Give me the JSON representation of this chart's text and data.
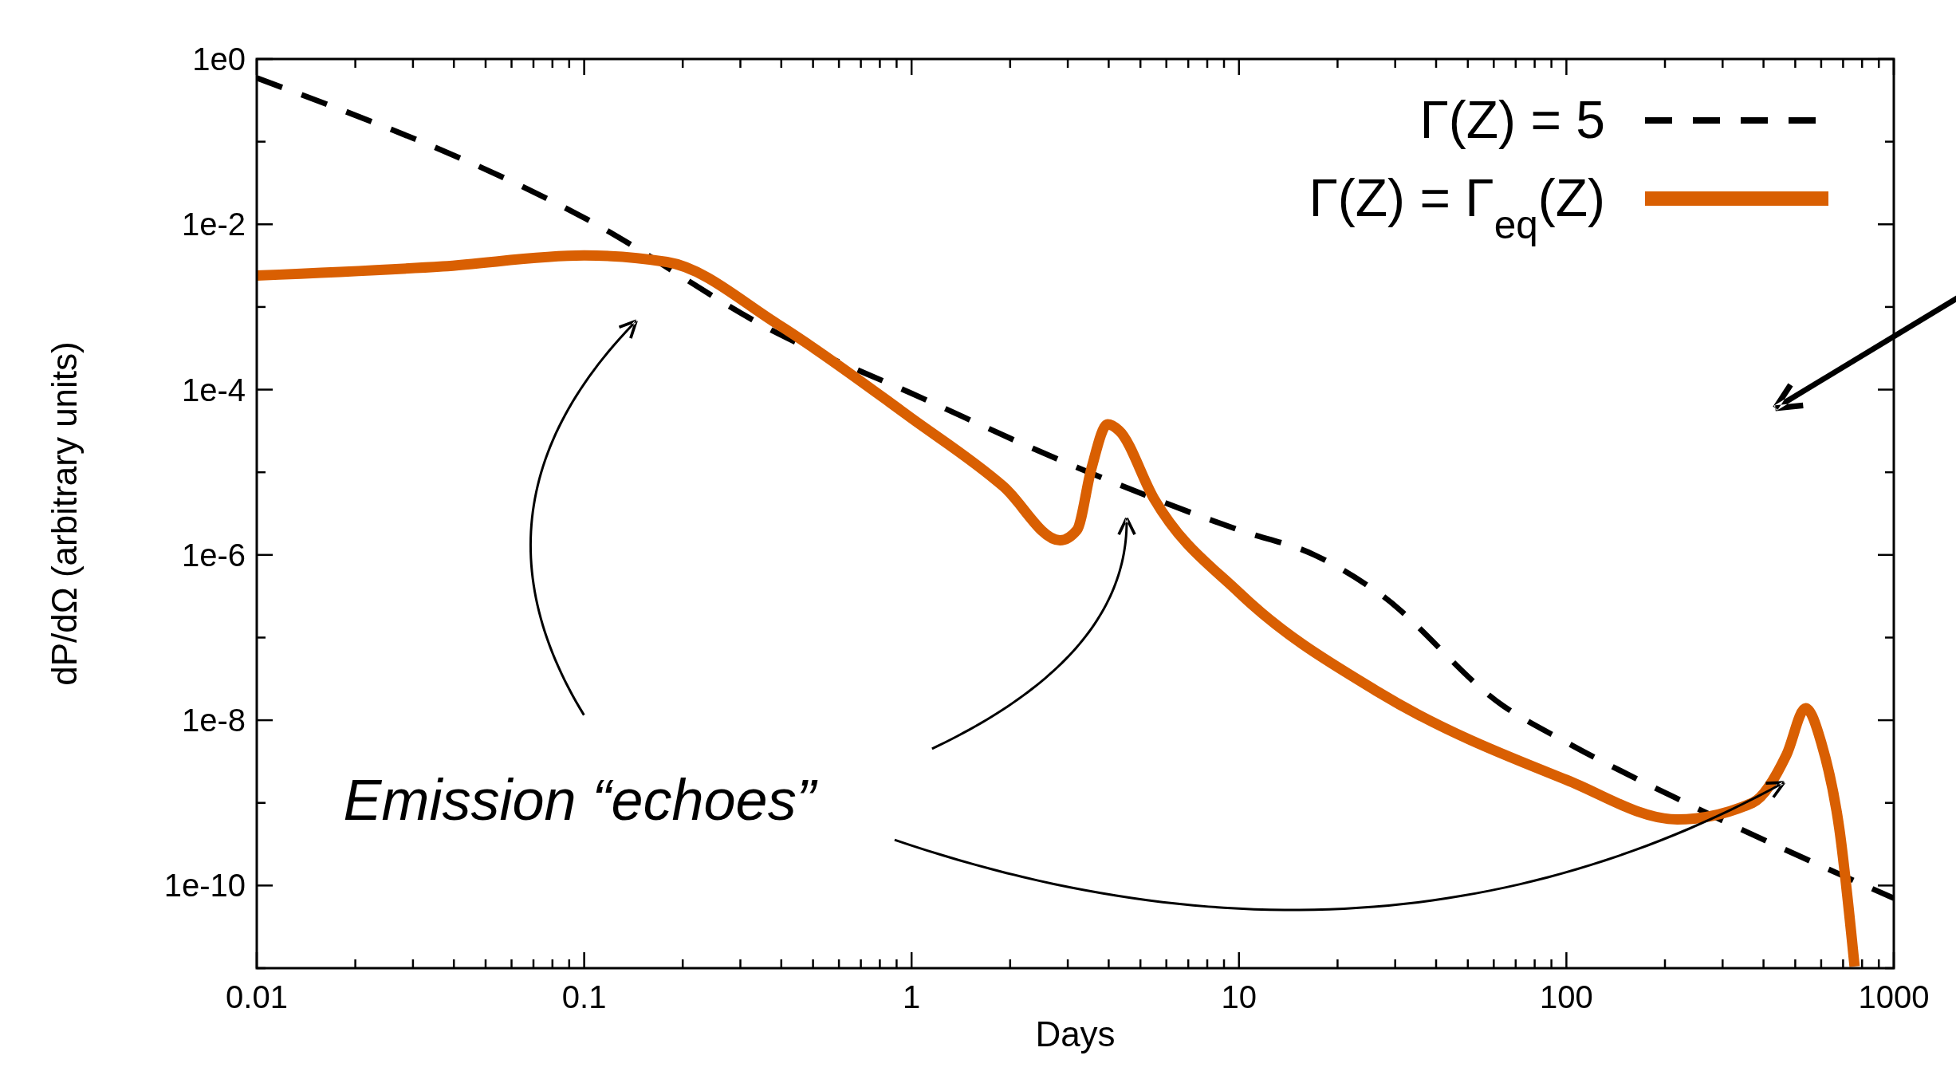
{
  "chart_data": {
    "type": "line",
    "xlabel": "Days",
    "ylabel": "dP/dΩ (arbitrary units)",
    "log": "xy",
    "xlim": [
      0.01,
      1000
    ],
    "ylim": [
      1e-11,
      1
    ],
    "xticks": [
      {
        "value": 0.01,
        "label": "0.01"
      },
      {
        "value": 0.02,
        "label": null
      },
      {
        "value": 0.03,
        "label": null
      },
      {
        "value": 0.04,
        "label": null
      },
      {
        "value": 0.05,
        "label": null
      },
      {
        "value": 0.06,
        "label": null
      },
      {
        "value": 0.07,
        "label": null
      },
      {
        "value": 0.08,
        "label": null
      },
      {
        "value": 0.09,
        "label": null
      },
      {
        "value": 0.1,
        "label": "0.1"
      },
      {
        "value": 0.2,
        "label": null
      },
      {
        "value": 0.3,
        "label": null
      },
      {
        "value": 0.4,
        "label": null
      },
      {
        "value": 0.5,
        "label": null
      },
      {
        "value": 0.6,
        "label": null
      },
      {
        "value": 0.7,
        "label": null
      },
      {
        "value": 0.8,
        "label": null
      },
      {
        "value": 0.9,
        "label": null
      },
      1,
      {
        "value": 2,
        "label": null
      },
      {
        "value": 3,
        "label": null
      },
      {
        "value": 4,
        "label": null
      },
      {
        "value": 5,
        "label": null
      },
      {
        "value": 6,
        "label": null
      },
      {
        "value": 7,
        "label": null
      },
      {
        "value": 8,
        "label": null
      },
      {
        "value": 9,
        "label": null
      },
      10,
      {
        "value": 20,
        "label": null
      },
      {
        "value": 30,
        "label": null
      },
      {
        "value": 40,
        "label": null
      },
      {
        "value": 50,
        "label": null
      },
      {
        "value": 60,
        "label": null
      },
      {
        "value": 70,
        "label": null
      },
      {
        "value": 80,
        "label": null
      },
      {
        "value": 90,
        "label": null
      },
      100,
      {
        "value": 200,
        "label": null
      },
      {
        "value": 300,
        "label": null
      },
      {
        "value": 400,
        "label": null
      },
      {
        "value": 500,
        "label": null
      },
      {
        "value": 600,
        "label": null
      },
      {
        "value": 700,
        "label": null
      },
      {
        "value": 800,
        "label": null
      },
      {
        "value": 900,
        "label": null
      },
      1000
    ],
    "yticks": [
      {
        "value": 1e-11,
        "label": null
      },
      {
        "value": 1e-10,
        "label": "1e-10"
      },
      {
        "value": 1e-09,
        "label": null
      },
      {
        "value": 1e-08,
        "label": "1e-8"
      },
      {
        "value": 1e-07,
        "label": null
      },
      {
        "value": 1e-06,
        "label": "1e-6"
      },
      {
        "value": 1e-05,
        "label": null
      },
      {
        "value": 0.0001,
        "label": "1e-4"
      },
      {
        "value": 0.001,
        "label": null
      },
      {
        "value": 0.01,
        "label": "1e-2"
      },
      {
        "value": 0.1,
        "label": null
      },
      {
        "value": 1,
        "label": "1e0"
      }
    ],
    "grid": false,
    "legend": "top right",
    "annotations": [
      "Emission “echoes”"
    ],
    "series": [
      {
        "name": "Γ(Z) = 5",
        "color": "#000000",
        "line_style": "dashed",
        "x": [
          0.01,
          0.1,
          0.39,
          1,
          2.97,
          10,
          17,
          26.6,
          64,
          100,
          238,
          1000
        ],
        "values": [
          0.59,
          0.012,
          0.00048,
          9e-05,
          1.3e-05,
          2e-06,
          1e-06,
          3.5e-07,
          1.5e-08,
          5.4e-09,
          9.5e-10,
          7e-11
        ]
      },
      {
        "name": "Γ(Z) = Γ$_{eq}$(Z)",
        "color": "#d95f02",
        "line_style": "solid",
        "x": [
          0.01,
          0.037,
          0.1,
          0.179,
          0.39,
          1,
          1.91,
          2.84,
          3.2,
          3.54,
          3.97,
          4.3,
          5.5,
          10,
          26.6,
          100,
          218,
          370,
          470,
          538,
          600,
          682,
          759
        ],
        "values": [
          0.0024,
          0.0031,
          0.0042,
          0.0035,
          0.00062,
          4.5e-05,
          6.7e-06,
          1.5e-06,
          2e-06,
          1.1e-05,
          3.8e-05,
          3.2e-05,
          4.8e-06,
          3.5e-07,
          2.2e-08,
          1.9e-09,
          6.3e-10,
          1e-09,
          3.8e-09,
          1.4e-08,
          5.4e-09,
          4.8e-10,
          1.05e-11
        ]
      }
    ]
  }
}
